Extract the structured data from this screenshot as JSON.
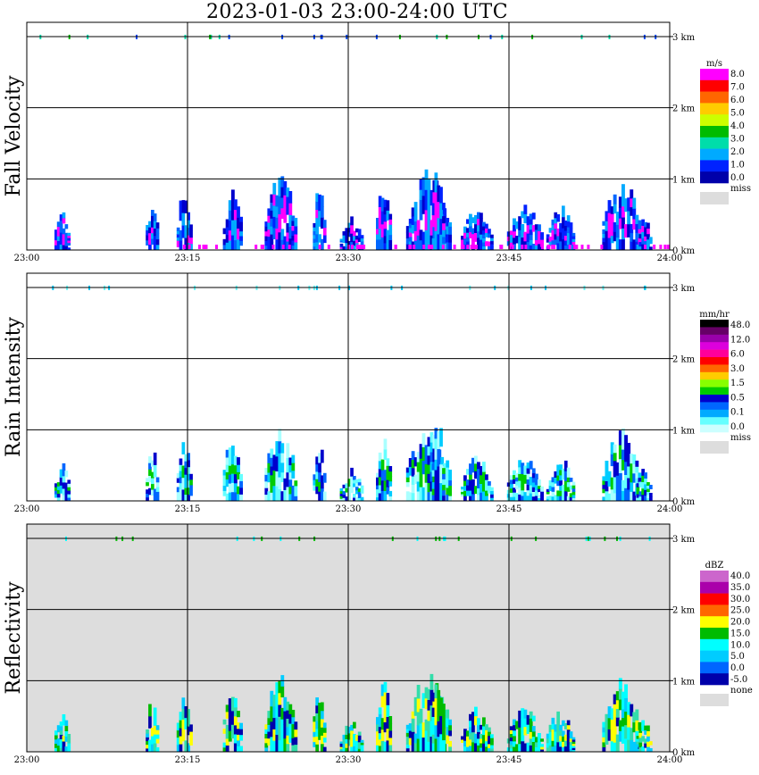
{
  "title": "2023-01-03  23:00-24:00 UTC",
  "chart_data": [
    {
      "type": "heatmap",
      "panel": "fall_velocity",
      "ylabel": "Fall Velocity",
      "x_ticks": [
        "23:00",
        "23:15",
        "23:30",
        "23:45",
        "24:00"
      ],
      "y_ticks": [
        "0 km",
        "1 km",
        "2 km",
        "3 km"
      ],
      "ylim": [
        0,
        3.2
      ],
      "grid": true,
      "legend_position": "right",
      "legend_unit": "m/s",
      "legend_labels": [
        "8.0",
        "7.0",
        "6.0",
        "5.0",
        "4.0",
        "3.0",
        "2.0",
        "1.0",
        "0.0"
      ],
      "legend_colors": [
        "#ff00ff",
        "#ff0000",
        "#ff6600",
        "#ffcc00",
        "#ccff00",
        "#00bb00",
        "#00ddaa",
        "#00aaff",
        "#0022ff",
        "#0000aa"
      ],
      "missing_label": "miss",
      "missing_color": "#dddddd",
      "background": "#ffffff",
      "cell_palette": [
        "#0000cc",
        "#0022ff",
        "#0066ff",
        "#00aaff",
        "#ff00ff"
      ],
      "noise_palette": [
        "#0044ff",
        "#00bb00",
        "#00ddaa"
      ]
    },
    {
      "type": "heatmap",
      "panel": "rain_intensity",
      "ylabel": "Rain Intensity",
      "x_ticks": [
        "23:00",
        "23:15",
        "23:30",
        "23:45",
        "24:00"
      ],
      "y_ticks": [
        "0 km",
        "1 km",
        "2 km",
        "3 km"
      ],
      "ylim": [
        0,
        3.2
      ],
      "grid": true,
      "legend_position": "right",
      "legend_unit": "mm/hr",
      "legend_labels": [
        "48.0",
        "12.0",
        "6.0",
        "3.0",
        "1.5",
        "0.5",
        "0.1",
        "0.0"
      ],
      "legend_colors": [
        "#000000",
        "#660066",
        "#9900aa",
        "#dd00dd",
        "#ff0099",
        "#ff0000",
        "#ff6600",
        "#ffcc00",
        "#88ff00",
        "#00cc00",
        "#0000cc",
        "#0066ff",
        "#00aaff",
        "#66ffff",
        "#ccffff"
      ],
      "missing_label": "miss",
      "missing_color": "#dddddd",
      "background": "#ffffff",
      "cell_palette": [
        "#aaffff",
        "#66ffff",
        "#00ccff",
        "#0066ff",
        "#0000cc",
        "#00cc00"
      ],
      "noise_palette": [
        "#66ffff",
        "#00ccff"
      ]
    },
    {
      "type": "heatmap",
      "panel": "reflectivity",
      "ylabel": "Reflectivity",
      "x_ticks": [
        "23:00",
        "23:15",
        "23:30",
        "23:45",
        "24:00"
      ],
      "y_ticks": [
        "0 km",
        "1 km",
        "2 km",
        "3 km"
      ],
      "ylim": [
        0,
        3.2
      ],
      "grid": true,
      "legend_position": "right",
      "legend_unit": "dBZ",
      "legend_labels": [
        "40.0",
        "35.0",
        "30.0",
        "25.0",
        "20.0",
        "15.0",
        "10.0",
        "5.0",
        "0.0",
        "-5.0"
      ],
      "legend_colors": [
        "#cc66cc",
        "#aa00aa",
        "#ff0000",
        "#ff6600",
        "#ffff00",
        "#00bb00",
        "#00ffff",
        "#00ccff",
        "#0066ff",
        "#0000aa"
      ],
      "missing_label": "none",
      "missing_color": "#dddddd",
      "background": "#dddddd",
      "cell_palette": [
        "#00ccff",
        "#00ffff",
        "#33ddaa",
        "#00bb00",
        "#0000aa",
        "#ffff00"
      ],
      "noise_palette": [
        "#00ffff",
        "#00bb00"
      ]
    }
  ]
}
